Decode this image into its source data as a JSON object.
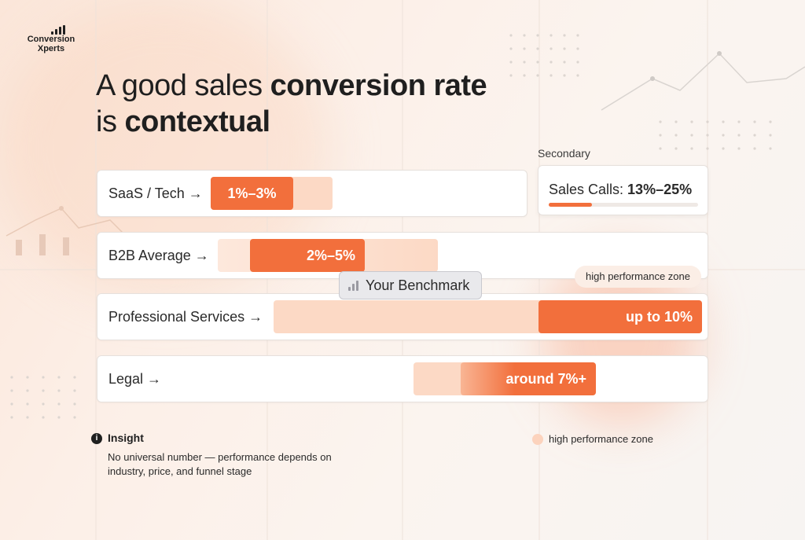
{
  "brand": {
    "name_line1": "Conversion",
    "name_line2": "Xperts"
  },
  "headline": {
    "line1_light": "A good sales ",
    "line1_bold": "conversion rate",
    "line2_light": "is ",
    "line2_bold": "contextual"
  },
  "rows": [
    {
      "label": "SaaS / Tech →",
      "value": "1%–3%"
    },
    {
      "label": "B2B Average →",
      "value": "2%–5%"
    },
    {
      "label": "Professional Services →",
      "value": "up to 10%"
    },
    {
      "label": "Legal →",
      "value": "around 7%+"
    }
  ],
  "secondary": {
    "title": "Secondary",
    "label": "Sales Calls: ",
    "value": "13%–25%",
    "progress_fraction": 0.29
  },
  "benchmark_label": "Your Benchmark",
  "high_performance_tag": "high performance zone",
  "insight": {
    "title": "Insight",
    "icon": "i",
    "body": "No universal number — performance depends on industry, price, and funnel stage"
  },
  "legend": {
    "label": "high performance zone"
  },
  "colors": {
    "accent": "#f26f3c",
    "accent_light": "#fcd9c5",
    "card": "#ffffff",
    "text": "#1f1f1f"
  },
  "icons": [
    "logo-bars-icon",
    "arrow-right-icon",
    "bar-chart-icon",
    "info-icon",
    "legend-dot-icon"
  ]
}
